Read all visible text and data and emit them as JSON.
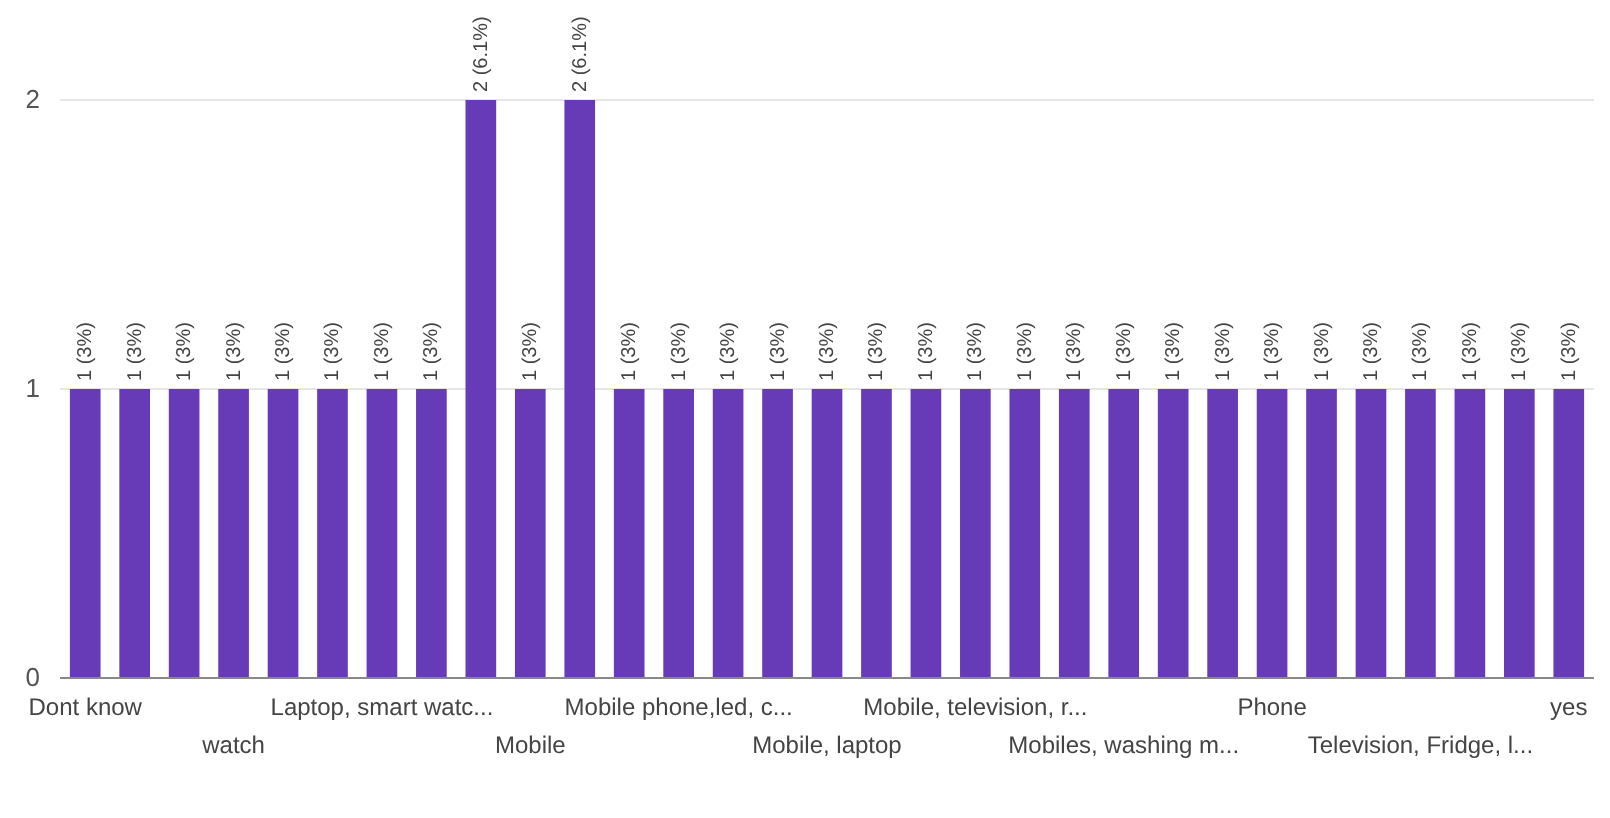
{
  "chart_data": {
    "type": "bar",
    "categories": [
      "Dont know",
      null,
      null,
      "watch",
      null,
      null,
      "Laptop, smart watc...",
      null,
      null,
      "Mobile",
      null,
      null,
      "Mobile phone,led, c...",
      null,
      null,
      "Mobile, laptop",
      null,
      null,
      "Mobile, television, r...",
      null,
      null,
      "Mobiles, washing m...",
      null,
      null,
      "Phone",
      null,
      null,
      "Television, Fridge, l...",
      null,
      null,
      "yes"
    ],
    "values": [
      1,
      1,
      1,
      1,
      1,
      1,
      1,
      1,
      2,
      1,
      2,
      1,
      1,
      1,
      1,
      1,
      1,
      1,
      1,
      1,
      1,
      1,
      1,
      1,
      1,
      1,
      1,
      1,
      1,
      1,
      1
    ],
    "value_labels": [
      "1 (3%)",
      "1 (3%)",
      "1 (3%)",
      "1 (3%)",
      "1 (3%)",
      "1 (3%)",
      "1 (3%)",
      "1 (3%)",
      "2 (6.1%)",
      "1 (3%)",
      "2 (6.1%)",
      "1 (3%)",
      "1 (3%)",
      "1 (3%)",
      "1 (3%)",
      "1 (3%)",
      "1 (3%)",
      "1 (3%)",
      "1 (3%)",
      "1 (3%)",
      "1 (3%)",
      "1 (3%)",
      "1 (3%)",
      "1 (3%)",
      "1 (3%)",
      "1 (3%)",
      "1 (3%)",
      "1 (3%)",
      "1 (3%)",
      "1 (3%)",
      "1 (3%)"
    ],
    "color": "#673ab7",
    "ylim": [
      0,
      2
    ],
    "yticks": [
      0,
      1,
      2
    ],
    "grid": "y"
  }
}
